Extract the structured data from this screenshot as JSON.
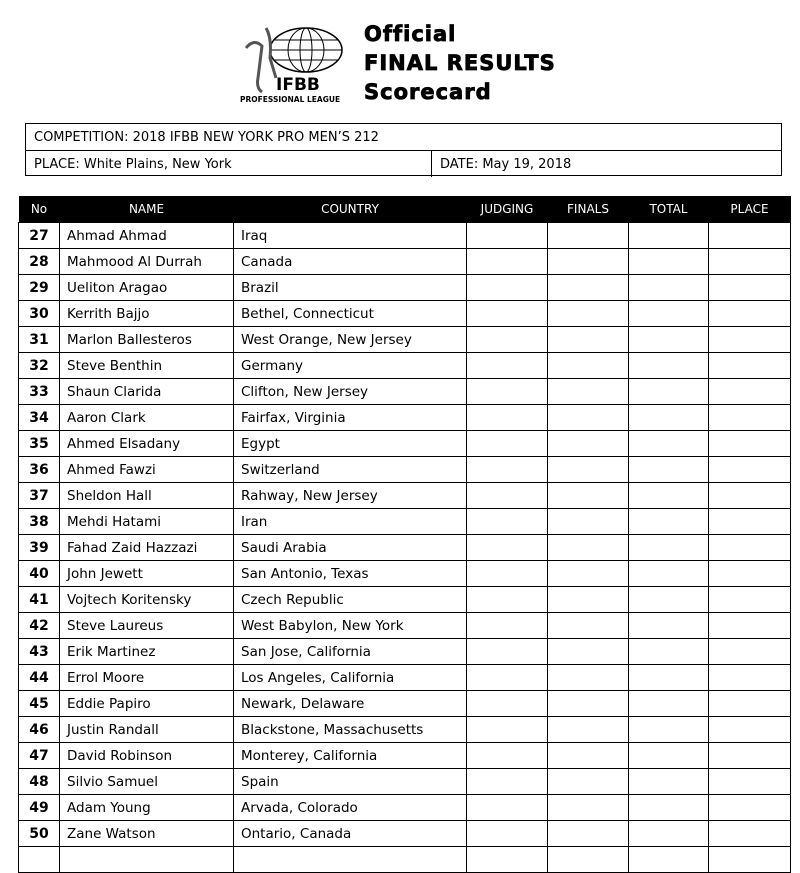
{
  "logo": {
    "text": "IFBB",
    "subtext": "PROFESSIONAL LEAGUE"
  },
  "title": {
    "line1": "Official",
    "line2": "FINAL RESULTS",
    "line3": "Scorecard"
  },
  "info": {
    "competition": "COMPETITION:  2018 IFBB NEW YORK PRO MEN’S 212",
    "place": "PLACE:  White Plains, New York",
    "date": "DATE:   May 19, 2018"
  },
  "columns": [
    "No",
    "NAME",
    "COUNTRY",
    "JUDGING",
    "FINALS",
    "TOTAL",
    "PLACE"
  ],
  "rows": [
    [
      "27",
      "Ahmad Ahmad",
      "Iraq"
    ],
    [
      "28",
      "Mahmood Al Durrah",
      "Canada"
    ],
    [
      "29",
      "Ueliton Aragao",
      "Brazil"
    ],
    [
      "30",
      "Kerrith Bajjo",
      "Bethel, Connecticut"
    ],
    [
      "31",
      "Marlon Ballesteros",
      "West Orange, New Jersey"
    ],
    [
      "32",
      "Steve Benthin",
      "Germany"
    ],
    [
      "33",
      "Shaun Clarida",
      "Clifton, New Jersey"
    ],
    [
      "34",
      "Aaron Clark",
      "Fairfax, Virginia"
    ],
    [
      "35",
      "Ahmed Elsadany",
      "Egypt"
    ],
    [
      "36",
      "Ahmed Fawzi",
      "Switzerland"
    ],
    [
      "37",
      "Sheldon Hall",
      "Rahway, New Jersey"
    ],
    [
      "38",
      "Mehdi Hatami",
      "Iran"
    ],
    [
      "39",
      "Fahad Zaid Hazzazi",
      "Saudi Arabia"
    ],
    [
      "40",
      "John Jewett",
      "San Antonio, Texas"
    ],
    [
      "41",
      "Vojtech Koritensky",
      "Czech Republic"
    ],
    [
      "42",
      "Steve Laureus",
      "West Babylon, New York"
    ],
    [
      "43",
      "Erik Martinez",
      "San Jose, California"
    ],
    [
      "44",
      "Errol Moore",
      "Los Angeles, California"
    ],
    [
      "45",
      "Eddie Papiro",
      "Newark, Delaware"
    ],
    [
      "46",
      "Justin Randall",
      "Blackstone, Massachusetts"
    ],
    [
      "47",
      "David Robinson",
      "Monterey, California"
    ],
    [
      "48",
      "Silvio Samuel",
      "Spain"
    ],
    [
      "49",
      "Adam Young",
      "Arvada, Colorado"
    ],
    [
      "50",
      "Zane Watson",
      "Ontario, Canada"
    ],
    [
      "",
      "",
      ""
    ]
  ]
}
